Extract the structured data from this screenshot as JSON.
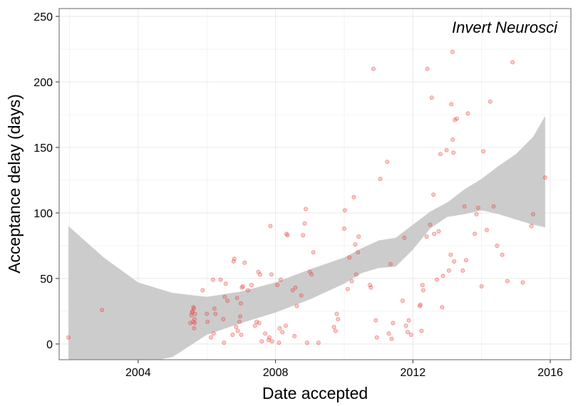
{
  "chart_data": {
    "type": "scatter",
    "annotation": "Invert Neurosci",
    "xlabel": "Date accepted",
    "ylabel": "Acceptance delay (days)",
    "xlim": [
      2001.7,
      2016.6
    ],
    "ylim": [
      -12,
      256
    ],
    "x_ticks": [
      2004,
      2008,
      2012,
      2016
    ],
    "x_tick_labels": [
      "2004",
      "2008",
      "2012",
      "2016"
    ],
    "y_ticks": [
      0,
      50,
      100,
      150,
      200,
      250
    ],
    "y_tick_labels": [
      "0",
      "50",
      "100",
      "150",
      "200",
      "250"
    ],
    "grid": true,
    "colors": {
      "points": "#e8473f",
      "ribbon": "#cccccc",
      "border": "#7f7f7f",
      "grid": "#ebebeb"
    },
    "points": [
      [
        2001.97,
        5
      ],
      [
        2002.95,
        26
      ],
      [
        2005.52,
        16
      ],
      [
        2005.55,
        22
      ],
      [
        2005.57,
        24
      ],
      [
        2005.58,
        25
      ],
      [
        2005.6,
        17
      ],
      [
        2005.61,
        28
      ],
      [
        2005.62,
        27
      ],
      [
        2005.63,
        12
      ],
      [
        2005.64,
        19
      ],
      [
        2005.65,
        16
      ],
      [
        2005.66,
        23
      ],
      [
        2005.88,
        41
      ],
      [
        2006.0,
        23
      ],
      [
        2006.02,
        17
      ],
      [
        2006.12,
        5
      ],
      [
        2006.18,
        49
      ],
      [
        2006.2,
        8
      ],
      [
        2006.22,
        27
      ],
      [
        2006.25,
        23
      ],
      [
        2006.4,
        49
      ],
      [
        2006.48,
        19
      ],
      [
        2006.5,
        1
      ],
      [
        2006.52,
        36
      ],
      [
        2006.55,
        46
      ],
      [
        2006.6,
        33
      ],
      [
        2006.75,
        7
      ],
      [
        2006.78,
        63
      ],
      [
        2006.8,
        65
      ],
      [
        2006.85,
        13
      ],
      [
        2006.88,
        35
      ],
      [
        2006.9,
        10
      ],
      [
        2006.95,
        17
      ],
      [
        2006.97,
        21
      ],
      [
        2006.99,
        31
      ],
      [
        2007.0,
        7
      ],
      [
        2007.02,
        43
      ],
      [
        2007.05,
        44
      ],
      [
        2007.1,
        62
      ],
      [
        2007.2,
        41
      ],
      [
        2007.3,
        45
      ],
      [
        2007.4,
        14
      ],
      [
        2007.45,
        17
      ],
      [
        2007.5,
        55
      ],
      [
        2007.52,
        16
      ],
      [
        2007.55,
        53
      ],
      [
        2007.6,
        2
      ],
      [
        2007.7,
        8
      ],
      [
        2007.8,
        3
      ],
      [
        2007.82,
        5
      ],
      [
        2007.85,
        90
      ],
      [
        2007.88,
        53
      ],
      [
        2007.9,
        2
      ],
      [
        2008.05,
        45
      ],
      [
        2008.1,
        1
      ],
      [
        2008.12,
        12
      ],
      [
        2008.15,
        49
      ],
      [
        2008.2,
        9
      ],
      [
        2008.3,
        14
      ],
      [
        2008.32,
        84
      ],
      [
        2008.35,
        83
      ],
      [
        2008.5,
        41
      ],
      [
        2008.55,
        6
      ],
      [
        2008.58,
        43
      ],
      [
        2008.62,
        29
      ],
      [
        2008.75,
        37
      ],
      [
        2008.8,
        83
      ],
      [
        2008.85,
        92
      ],
      [
        2008.88,
        103
      ],
      [
        2008.92,
        1
      ],
      [
        2009.0,
        55
      ],
      [
        2009.05,
        53
      ],
      [
        2009.1,
        70
      ],
      [
        2009.25,
        1
      ],
      [
        2009.7,
        13
      ],
      [
        2009.75,
        10
      ],
      [
        2009.78,
        23
      ],
      [
        2009.82,
        19
      ],
      [
        2010.0,
        88
      ],
      [
        2010.02,
        102
      ],
      [
        2010.1,
        42
      ],
      [
        2010.15,
        66
      ],
      [
        2010.22,
        48
      ],
      [
        2010.28,
        112
      ],
      [
        2010.32,
        76
      ],
      [
        2010.35,
        53
      ],
      [
        2010.4,
        70
      ],
      [
        2010.42,
        82
      ],
      [
        2010.75,
        45
      ],
      [
        2010.78,
        43
      ],
      [
        2010.85,
        210
      ],
      [
        2010.92,
        18
      ],
      [
        2010.95,
        5
      ],
      [
        2011.05,
        126
      ],
      [
        2011.25,
        139
      ],
      [
        2011.3,
        8
      ],
      [
        2011.35,
        61
      ],
      [
        2011.38,
        4
      ],
      [
        2011.42,
        16
      ],
      [
        2011.7,
        33
      ],
      [
        2011.75,
        81
      ],
      [
        2011.8,
        14
      ],
      [
        2011.85,
        9
      ],
      [
        2011.88,
        18
      ],
      [
        2011.95,
        7
      ],
      [
        2012.2,
        29
      ],
      [
        2012.22,
        30
      ],
      [
        2012.25,
        10
      ],
      [
        2012.28,
        45
      ],
      [
        2012.3,
        41
      ],
      [
        2012.4,
        82
      ],
      [
        2012.42,
        210
      ],
      [
        2012.5,
        91
      ],
      [
        2012.55,
        188
      ],
      [
        2012.6,
        114
      ],
      [
        2012.62,
        84
      ],
      [
        2012.7,
        49
      ],
      [
        2012.75,
        86
      ],
      [
        2012.8,
        145
      ],
      [
        2012.85,
        28
      ],
      [
        2012.88,
        52
      ],
      [
        2012.98,
        148
      ],
      [
        2013.05,
        56
      ],
      [
        2013.1,
        68
      ],
      [
        2013.12,
        183
      ],
      [
        2013.15,
        223
      ],
      [
        2013.16,
        156
      ],
      [
        2013.18,
        146
      ],
      [
        2013.2,
        63
      ],
      [
        2013.22,
        171
      ],
      [
        2013.28,
        172
      ],
      [
        2013.45,
        56
      ],
      [
        2013.5,
        105
      ],
      [
        2013.55,
        64
      ],
      [
        2013.6,
        176
      ],
      [
        2013.8,
        84
      ],
      [
        2013.85,
        99
      ],
      [
        2013.9,
        104
      ],
      [
        2014.0,
        44
      ],
      [
        2014.05,
        147
      ],
      [
        2014.15,
        87
      ],
      [
        2014.25,
        185
      ],
      [
        2014.35,
        105
      ],
      [
        2014.45,
        75
      ],
      [
        2014.6,
        68
      ],
      [
        2014.75,
        48
      ],
      [
        2014.9,
        215
      ],
      [
        2015.2,
        47
      ],
      [
        2015.45,
        90
      ],
      [
        2015.5,
        99
      ],
      [
        2015.85,
        127
      ]
    ],
    "smooth": {
      "method": "loess",
      "x": [
        2001.97,
        2003,
        2004,
        2005,
        2006,
        2007,
        2008,
        2009,
        2010,
        2010.5,
        2011,
        2011.5,
        2012,
        2012.5,
        2013,
        2013.5,
        2014,
        2014.5,
        2015,
        2015.5,
        2015.85
      ],
      "upper": [
        90,
        66,
        47,
        39,
        36,
        40,
        47,
        57,
        66,
        73,
        79,
        81,
        91,
        101,
        108,
        118,
        126,
        136,
        145,
        158,
        174
      ],
      "lower": [
        -20,
        -19,
        -15,
        -10,
        7,
        16,
        24,
        34,
        46,
        54,
        58,
        59,
        72,
        88,
        97,
        99,
        102,
        99,
        95,
        91,
        89
      ]
    }
  }
}
